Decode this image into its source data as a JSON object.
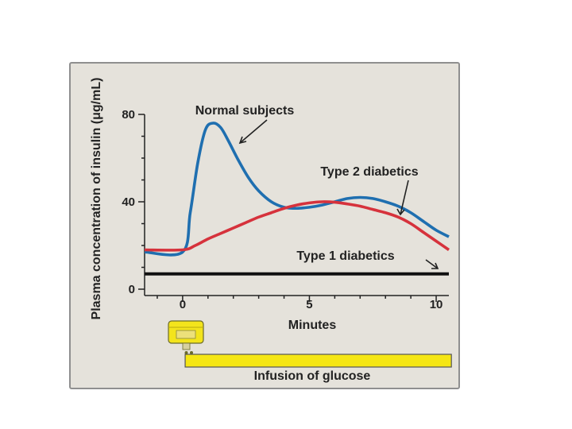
{
  "chart_data": {
    "type": "line",
    "xlabel": "Minutes",
    "ylabel": "Plasma concentration of insulin (μg/mL)",
    "xlim": [
      -1.5,
      10.5
    ],
    "ylim": [
      0,
      80
    ],
    "x_ticks": [
      0,
      5,
      10
    ],
    "y_ticks": [
      0,
      40,
      80
    ],
    "grid": false,
    "colors": {
      "normal": "#1f6fb0",
      "type2": "#d6323c",
      "type1": "#111111",
      "infusion": "#f5e614"
    },
    "series": [
      {
        "name": "Normal subjects",
        "key": "normal",
        "x": [
          -1.5,
          0,
          0.3,
          0.6,
          0.9,
          1.2,
          1.5,
          1.8,
          2.2,
          2.6,
          3.0,
          3.5,
          4.0,
          4.5,
          5.0,
          5.5,
          6.0,
          6.5,
          7.0,
          7.5,
          8.0,
          8.5,
          9.0,
          9.5,
          10.0,
          10.5
        ],
        "y": [
          17,
          17,
          35,
          58,
          73,
          76,
          74,
          68,
          59,
          51,
          45,
          40,
          37.5,
          37,
          37.5,
          38.5,
          40,
          41.5,
          42,
          41.5,
          40,
          38,
          35,
          31,
          27,
          24
        ]
      },
      {
        "name": "Type 2 diabetics",
        "key": "type2",
        "x": [
          -1.5,
          0,
          0.5,
          1.0,
          1.5,
          2.0,
          2.5,
          3.0,
          3.5,
          4.0,
          4.5,
          5.0,
          5.5,
          6.0,
          6.5,
          7.0,
          7.5,
          8.0,
          8.5,
          9.0,
          9.5,
          10.0,
          10.5
        ],
        "y": [
          18,
          18,
          20,
          23,
          25.5,
          28,
          30.5,
          33,
          35,
          37,
          38.5,
          39.5,
          40,
          39.8,
          39,
          38,
          36.5,
          35,
          33,
          30,
          26,
          22,
          18
        ]
      },
      {
        "name": "Type 1 diabetics",
        "key": "type1",
        "x": [
          -1.5,
          10.5
        ],
        "y": [
          7,
          7
        ]
      }
    ],
    "annotations": [
      {
        "text": "Normal subjects",
        "series": "normal"
      },
      {
        "text": "Type 2 diabetics",
        "series": "type2"
      },
      {
        "text": "Type 1 diabetics",
        "series": "type1"
      }
    ],
    "infusion": {
      "label": "Infusion of glucose",
      "x_start": 0.1,
      "x_end": 10.6
    }
  }
}
